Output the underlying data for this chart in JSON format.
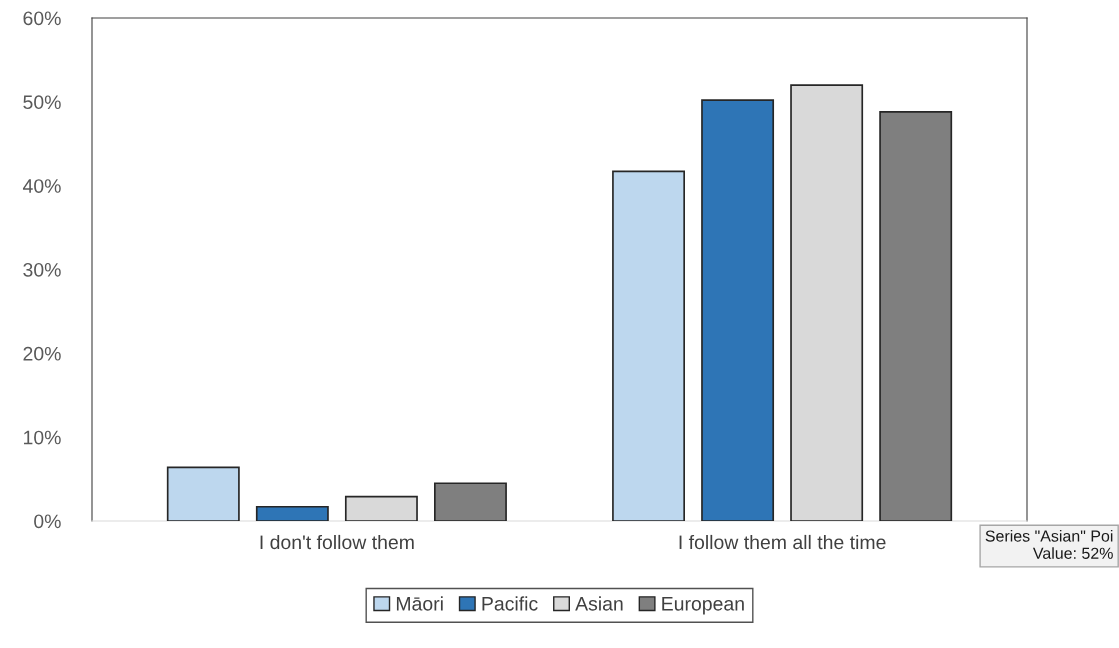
{
  "chart_data": {
    "type": "bar",
    "categories": [
      "I don't follow them",
      "I follow them all the time"
    ],
    "series": [
      {
        "name": "Māori",
        "color": "#bdd7ee",
        "values": [
          6.4,
          41.7
        ]
      },
      {
        "name": "Pacific",
        "color": "#2e75b6",
        "values": [
          1.7,
          50.2
        ]
      },
      {
        "name": "Asian",
        "color": "#d9d9d9",
        "values": [
          2.9,
          52
        ]
      },
      {
        "name": "European",
        "color": "#7f7f7f",
        "values": [
          4.5,
          48.8
        ]
      }
    ],
    "ylim": [
      0,
      60
    ],
    "yticks": [
      {
        "value": 0,
        "label": "0%"
      },
      {
        "value": 10,
        "label": "10%"
      },
      {
        "value": 20,
        "label": "20%"
      },
      {
        "value": 30,
        "label": "30%"
      },
      {
        "value": 40,
        "label": "40%"
      },
      {
        "value": 50,
        "label": "50%"
      },
      {
        "value": 60,
        "label": "60%"
      }
    ],
    "grid": false,
    "legend": "bottom",
    "annotations": [
      "Series \"Asian\" Poi\nValue: 52%"
    ]
  }
}
